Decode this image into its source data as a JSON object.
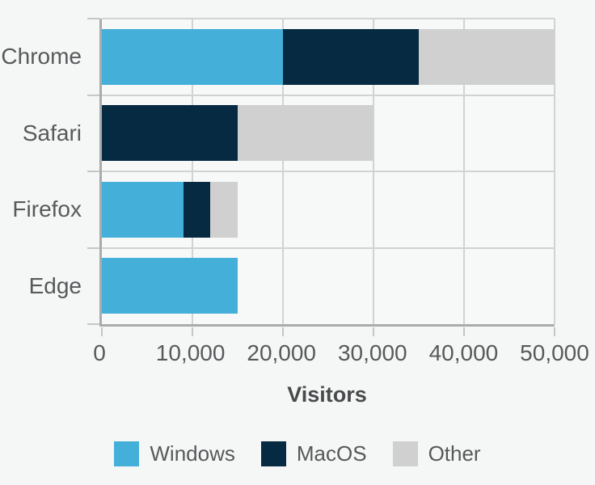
{
  "chart_data": {
    "type": "bar",
    "orientation": "horizontal",
    "stacked": true,
    "title": "",
    "xlabel": "Visitors",
    "ylabel": "",
    "categories": [
      "Chrome",
      "Safari",
      "Firefox",
      "Edge"
    ],
    "series": [
      {
        "name": "Windows",
        "color": "#44afd9",
        "values": [
          20000,
          0,
          9000,
          15000
        ]
      },
      {
        "name": "MacOS",
        "color": "#062a42",
        "values": [
          15000,
          15000,
          3000,
          0
        ]
      },
      {
        "name": "Other",
        "color": "#d0d0d0",
        "values": [
          15000,
          15000,
          3000,
          0
        ]
      }
    ],
    "category_totals": [
      50000,
      30000,
      15000,
      15000
    ],
    "xlim": [
      0,
      50000
    ],
    "xticks": [
      0,
      10000,
      20000,
      30000,
      40000,
      50000
    ],
    "xtick_labels": [
      "0",
      "10,000",
      "20,000",
      "30,000",
      "40,000",
      "50,000"
    ],
    "grid": true,
    "legend_position": "bottom",
    "legend_labels": [
      "Windows",
      "MacOS",
      "Other"
    ]
  }
}
